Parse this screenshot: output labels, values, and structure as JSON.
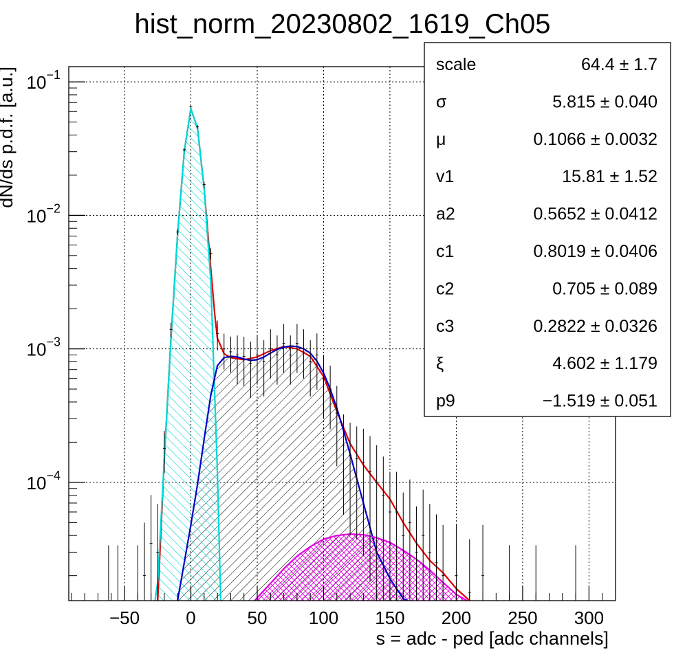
{
  "chart_data": {
    "type": "line",
    "title": "hist_norm_20230802_1619_Ch05",
    "xlabel": "s = adc - ped [adc channels]",
    "ylabel": "dN/ds p.d.f. [a.u.]",
    "xlim": [
      -92,
      320
    ],
    "ylim": [
      1.3e-05,
      0.13
    ],
    "yscale": "log",
    "grid": true,
    "x_ticks": [
      -50,
      0,
      50,
      100,
      150,
      200,
      250,
      300
    ],
    "x_tick_labels": [
      "−50",
      "0",
      "50",
      "100",
      "150",
      "200",
      "250",
      "300"
    ],
    "y_ticks": [
      {
        "value": 0.1,
        "base": "10",
        "exp": "−1"
      },
      {
        "value": 0.01,
        "base": "10",
        "exp": "−2"
      },
      {
        "value": 0.001,
        "base": "10",
        "exp": "−3"
      },
      {
        "value": 0.0001,
        "base": "10",
        "exp": "−4"
      }
    ],
    "series": [
      {
        "color": "#e00000",
        "fill": "none",
        "x": [
          -25,
          -20,
          -15,
          -10,
          -5,
          0,
          5,
          10,
          15,
          18,
          20,
          25,
          30,
          40,
          50,
          60,
          70,
          80,
          90,
          100,
          110,
          120,
          130,
          140,
          150,
          160,
          170,
          180,
          190,
          200,
          210
        ],
        "y": [
          1.3e-05,
          0.00015,
          0.0012,
          0.0072,
          0.03,
          0.063,
          0.045,
          0.016,
          0.004,
          0.0018,
          0.0012,
          0.00092,
          0.00086,
          0.00083,
          0.00087,
          0.00097,
          0.00104,
          0.001,
          0.00088,
          0.00062,
          0.00034,
          0.000195,
          0.000135,
          0.0001,
          7.5e-05,
          5e-05,
          3.5e-05,
          2.6e-05,
          2.1e-05,
          1.6e-05,
          1.3e-05
        ]
      },
      {
        "color": "#00d8d8",
        "fill": "hatch-cyan",
        "x": [
          -27,
          -25,
          -20,
          -15,
          -10,
          -5,
          0,
          5,
          10,
          15,
          20,
          22.5
        ],
        "y": [
          1.3e-05,
          1.8e-05,
          0.00015,
          0.0012,
          0.0072,
          0.03,
          0.063,
          0.045,
          0.016,
          0.0032,
          0.00012,
          1.3e-05
        ]
      },
      {
        "color": "#0000c8",
        "fill": "hatch-black",
        "x": [
          -10,
          -5,
          0,
          5,
          10,
          15,
          20,
          25,
          30,
          35,
          40,
          45,
          50,
          55,
          60,
          65,
          70,
          75,
          80,
          85,
          90,
          95,
          100,
          105,
          110,
          115,
          120,
          125,
          130,
          135,
          140,
          145,
          150,
          155,
          160,
          163
        ],
        "y": [
          1.3e-05,
          2.5e-05,
          4.8e-05,
          9.7e-05,
          0.00021,
          0.00045,
          0.00075,
          0.00086,
          0.00088,
          0.00087,
          0.00084,
          0.00082,
          0.00083,
          0.00087,
          0.00093,
          0.00099,
          0.00103,
          0.00105,
          0.00104,
          0.001,
          0.00093,
          0.00081,
          0.00066,
          0.0005,
          0.00036,
          0.000245,
          0.000163,
          0.000107,
          7e-05,
          4.6e-05,
          3e-05,
          2.4e-05,
          1.9e-05,
          1.6e-05,
          1.35e-05,
          1.3e-05
        ]
      },
      {
        "color": "#e000e0",
        "fill": "hatch-magenta",
        "x": [
          48,
          55,
          60,
          70,
          80,
          90,
          100,
          110,
          120,
          130,
          140,
          150,
          160,
          170,
          180,
          190,
          200,
          208
        ],
        "y": [
          1.3e-05,
          1.55e-05,
          1.75e-05,
          2.25e-05,
          2.8e-05,
          3.3e-05,
          3.75e-05,
          4e-05,
          4.1e-05,
          4.05e-05,
          3.85e-05,
          3.55e-05,
          3.1e-05,
          2.65e-05,
          2.2e-05,
          1.78e-05,
          1.45e-05,
          1.3e-05
        ]
      }
    ],
    "histogram": {
      "color": "#000000",
      "x": [
        -62,
        -55,
        -40,
        -35,
        -30,
        -25,
        -20,
        -15,
        -10,
        -5,
        0,
        5,
        10,
        15,
        20,
        25,
        30,
        35,
        40,
        45,
        50,
        55,
        60,
        65,
        70,
        75,
        80,
        85,
        90,
        95,
        100,
        105,
        110,
        115,
        120,
        125,
        130,
        135,
        140,
        145,
        150,
        155,
        160,
        165,
        170,
        175,
        180,
        185,
        190,
        200,
        210,
        220,
        240,
        260,
        290,
        320
      ],
      "y": [
        1.3e-05,
        1.3e-05,
        1.3e-05,
        2e-05,
        3.5e-05,
        3e-05,
        0.00018,
        0.0014,
        0.0075,
        0.031,
        0.065,
        0.046,
        0.017,
        0.0052,
        0.0013,
        0.001,
        0.00095,
        0.0009,
        0.00088,
        0.00078,
        0.0009,
        0.0008,
        0.001,
        0.0009,
        0.0011,
        0.0009,
        0.0011,
        0.001,
        0.0008,
        0.0009,
        0.0006,
        0.0005,
        0.00033,
        0.00019,
        0.00016,
        0.00015,
        0.00014,
        0.00012,
        0.0001,
        8e-05,
        6e-05,
        6e-05,
        4e-05,
        5e-05,
        3e-05,
        4e-05,
        3e-05,
        2.5e-05,
        2e-05,
        2e-05,
        1.5e-05,
        2e-05,
        1.3e-05,
        1.3e-05,
        1.3e-05,
        1.3e-05
      ],
      "err_rel": [
        1.6,
        1.6,
        1.6,
        1.5,
        1.3,
        1.3,
        0.35,
        0.12,
        0.05,
        0.03,
        0.02,
        0.03,
        0.05,
        0.1,
        0.25,
        0.3,
        0.3,
        0.4,
        0.4,
        0.45,
        0.4,
        0.45,
        0.4,
        0.4,
        0.4,
        0.4,
        0.4,
        0.4,
        0.45,
        0.45,
        0.5,
        0.5,
        0.6,
        0.7,
        0.75,
        0.75,
        0.8,
        0.85,
        0.9,
        0.95,
        1.0,
        1.0,
        1.1,
        1.1,
        1.2,
        1.2,
        1.3,
        1.3,
        1.4,
        1.4,
        1.5,
        1.4,
        1.6,
        1.6,
        1.6,
        1.6
      ]
    },
    "stats": [
      {
        "name": "scale",
        "value": "64.4 ± 1.7"
      },
      {
        "name": "σ",
        "value": "5.815 ± 0.040"
      },
      {
        "name": "μ",
        "value": "0.1066 ± 0.0032"
      },
      {
        "name": "v1",
        "value": "15.81 ± 1.52"
      },
      {
        "name": "a2",
        "value": "0.5652 ± 0.0412"
      },
      {
        "name": "c1",
        "value": "0.8019 ± 0.0406"
      },
      {
        "name": "c2",
        "value": "0.705 ± 0.089"
      },
      {
        "name": "c3",
        "value": "0.2822 ± 0.0326"
      },
      {
        "name": "ξ",
        "value": "4.602 ± 1.179"
      },
      {
        "name": "p9",
        "value": "−1.519 ± 0.051"
      }
    ]
  }
}
